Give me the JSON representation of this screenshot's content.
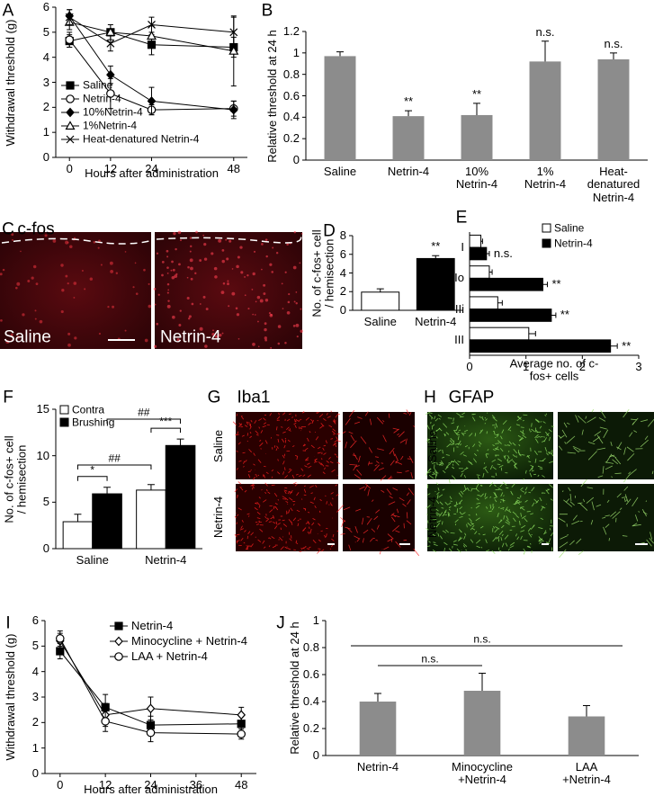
{
  "chart_data": [
    {
      "type": "line",
      "panel": "A",
      "ylabel": "Withdrawal threshold (g)",
      "xlabel": "Hours after administration",
      "x": [
        0,
        12,
        24,
        48
      ],
      "xlim": [
        -4,
        52
      ],
      "xticks": [
        0,
        12,
        24,
        48
      ],
      "ylim": [
        0,
        6
      ],
      "yticks": [
        0,
        1,
        2,
        3,
        4,
        5,
        6
      ],
      "legend": "lower left",
      "series": [
        {
          "name": "Saline",
          "color": "#000000",
          "marker": "square",
          "filled": true,
          "values": [
            4.65,
            5.0,
            4.5,
            4.4
          ],
          "errors": [
            0.25,
            0.1,
            0.4,
            0.4
          ]
        },
        {
          "name": "Netrin-4",
          "color": "#000000",
          "marker": "circle",
          "filled": false,
          "values": [
            4.7,
            2.55,
            1.9,
            1.95
          ],
          "errors": [
            0.3,
            0.6,
            0.2,
            0.3
          ]
        },
        {
          "name": "10%Netrin-4",
          "color": "#000000",
          "marker": "diamond",
          "filled": true,
          "values": [
            5.65,
            3.3,
            2.25,
            1.9
          ],
          "errors": [
            0.25,
            0.35,
            0.55,
            0.35
          ]
        },
        {
          "name": "1%Netrin-4",
          "color": "#000000",
          "marker": "triangle",
          "filled": false,
          "values": [
            5.4,
            5.0,
            4.85,
            4.25
          ],
          "errors": [
            0.3,
            0.3,
            0.4,
            1.4
          ]
        },
        {
          "name": "Heat-denatured Netrin-4",
          "color": "#000000",
          "marker": "x",
          "filled": false,
          "values": [
            5.6,
            4.55,
            5.3,
            5.0
          ],
          "errors": [
            0.3,
            0.3,
            0.3,
            0.6
          ]
        }
      ]
    },
    {
      "type": "bar",
      "panel": "B",
      "ylabel": "Relative threshold at 24 h",
      "categories": [
        "Saline",
        "Netrin-4",
        "10%\nNetrin-4",
        "1%\nNetrin-4",
        "Heat-denatured\nNetrin-4"
      ],
      "values": [
        0.97,
        0.41,
        0.42,
        0.92,
        0.94
      ],
      "errors": [
        0.04,
        0.05,
        0.11,
        0.19,
        0.06
      ],
      "color": "#8c8c8c",
      "significance": [
        null,
        "**",
        "**",
        "n.s.",
        "n.s."
      ],
      "ylim": [
        0,
        1.2
      ],
      "yticks": [
        0,
        0.2,
        0.4,
        0.6,
        0.8,
        1,
        1.2
      ]
    },
    {
      "type": "bar",
      "panel": "D",
      "ylabel": "No. of c-fos+ cell\n/ hemisection",
      "categories": [
        "Saline",
        "Netrin-4"
      ],
      "values": [
        1.95,
        5.55
      ],
      "errors": [
        0.35,
        0.3
      ],
      "colors": [
        "#ffffff",
        "#000000"
      ],
      "significance": [
        null,
        "**"
      ],
      "ylim": [
        0,
        8
      ],
      "yticks": [
        0,
        2,
        4,
        6,
        8
      ]
    },
    {
      "type": "hbar",
      "panel": "E",
      "xlabel": "Average no. of c-fos+ cells",
      "categories": [
        "I",
        "IIo",
        "IIi",
        "III"
      ],
      "xlim": [
        0,
        3
      ],
      "xticks": [
        0,
        1,
        2,
        3
      ],
      "legend": "upper right",
      "series": [
        {
          "name": "Saline",
          "color": "#ffffff",
          "values": [
            0.2,
            0.35,
            0.5,
            1.05
          ],
          "errors": [
            0.03,
            0.05,
            0.08,
            0.12
          ]
        },
        {
          "name": "Netrin-4",
          "color": "#000000",
          "values": [
            0.3,
            1.3,
            1.45,
            2.5
          ],
          "errors": [
            0.05,
            0.08,
            0.08,
            0.12
          ]
        }
      ],
      "significance": [
        "n.s.",
        "**",
        "**",
        "**"
      ]
    },
    {
      "type": "bar",
      "panel": "F",
      "ylabel": "No. of c-fos+ cell\n/ hemisection",
      "categories": [
        "Saline",
        "Netrin-4"
      ],
      "ylim": [
        0,
        15
      ],
      "yticks": [
        0,
        5,
        10,
        15
      ],
      "legend": "upper left",
      "series": [
        {
          "name": "Contra",
          "color": "#ffffff",
          "values": [
            2.9,
            6.3
          ],
          "errors": [
            0.8,
            0.6
          ]
        },
        {
          "name": "Brushing",
          "color": "#000000",
          "values": [
            5.9,
            11.1
          ],
          "errors": [
            0.7,
            0.7
          ]
        }
      ],
      "annotations": [
        "*",
        "***",
        "##",
        "##"
      ]
    },
    {
      "type": "line",
      "panel": "I",
      "ylabel": "Withdrawal threshold (g)",
      "xlabel": "Hours after administration",
      "x": [
        0,
        12,
        24,
        48
      ],
      "xlim": [
        -4,
        52
      ],
      "xticks": [
        0,
        12,
        24,
        36,
        48
      ],
      "ylim": [
        0,
        6
      ],
      "yticks": [
        0,
        1,
        2,
        3,
        4,
        5,
        6
      ],
      "legend": "upper right",
      "series": [
        {
          "name": "Netrin-4",
          "color": "#000000",
          "marker": "square",
          "filled": true,
          "values": [
            4.8,
            2.6,
            1.9,
            1.95
          ],
          "errors": [
            0.3,
            0.5,
            0.35,
            0.35
          ]
        },
        {
          "name": "Minocycline + Netrin-4",
          "color": "#000000",
          "marker": "diamond",
          "filled": false,
          "values": [
            5.2,
            2.3,
            2.55,
            2.3
          ],
          "errors": [
            0.3,
            0.45,
            0.45,
            0.3
          ]
        },
        {
          "name": "LAA + Netrin-4",
          "color": "#000000",
          "marker": "circle",
          "filled": false,
          "values": [
            5.3,
            2.05,
            1.6,
            1.55
          ],
          "errors": [
            0.3,
            0.4,
            0.35,
            0.2
          ]
        }
      ]
    },
    {
      "type": "bar",
      "panel": "J",
      "ylabel": "Relative threshold at 24 h",
      "categories": [
        "Netrin-4",
        "Minocycline\n+Netrin-4",
        "LAA\n+Netrin-4"
      ],
      "values": [
        0.4,
        0.48,
        0.29
      ],
      "errors": [
        0.06,
        0.13,
        0.08
      ],
      "color": "#8c8c8c",
      "ylim": [
        0,
        1
      ],
      "yticks": [
        0,
        0.2,
        0.4,
        0.6,
        0.8,
        1
      ],
      "annotations": [
        "n.s.",
        "n.s."
      ]
    }
  ],
  "images": [
    {
      "panel": "C",
      "title": "c-fos",
      "labels": [
        "Saline",
        "Netrin-4"
      ]
    },
    {
      "panel": "G",
      "title": "Iba1",
      "labels": [
        "Saline",
        "Netrin-4"
      ]
    },
    {
      "panel": "H",
      "title": "GFAP",
      "labels": [
        "Saline",
        "Netrin-4"
      ]
    }
  ]
}
